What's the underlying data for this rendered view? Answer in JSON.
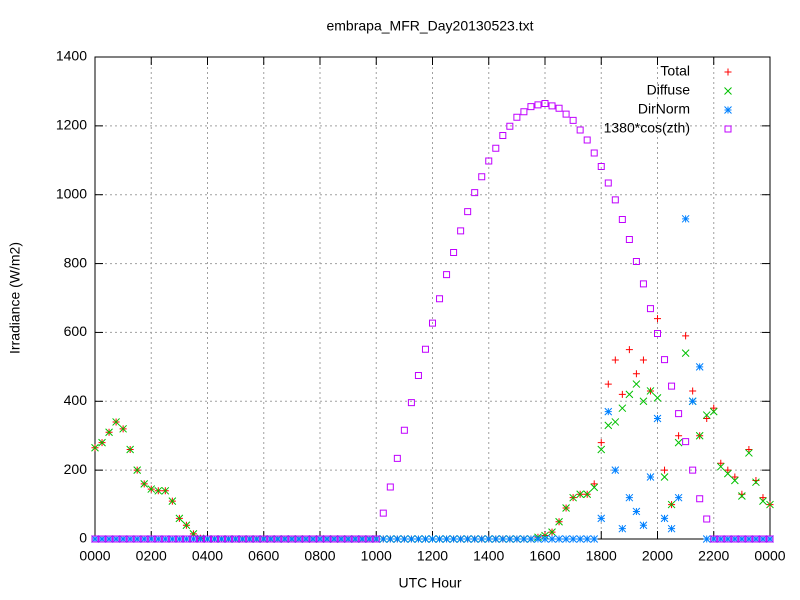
{
  "chart_data": {
    "type": "scatter",
    "title": "embrapa_MFR_Day20130523.txt",
    "x_label": "UTC Hour",
    "y_label": "Irradiance (W/m2)",
    "xlim": [
      0,
      24
    ],
    "ylim": [
      0,
      1400
    ],
    "xticks": [
      {
        "value": 0,
        "label": "0000"
      },
      {
        "value": 2,
        "label": "0200"
      },
      {
        "value": 4,
        "label": "0400"
      },
      {
        "value": 6,
        "label": "0600"
      },
      {
        "value": 8,
        "label": "0800"
      },
      {
        "value": 10,
        "label": "1000"
      },
      {
        "value": 12,
        "label": "1200"
      },
      {
        "value": 14,
        "label": "1400"
      },
      {
        "value": 16,
        "label": "1600"
      },
      {
        "value": 18,
        "label": "1800"
      },
      {
        "value": 20,
        "label": "2000"
      },
      {
        "value": 22,
        "label": "2200"
      },
      {
        "value": 24,
        "label": "0000"
      }
    ],
    "yticks": [
      0,
      200,
      400,
      600,
      800,
      1000,
      1200,
      1400
    ],
    "grid": true,
    "legend": "top-right",
    "x": [
      0,
      0.25,
      0.5,
      0.75,
      1,
      1.25,
      1.5,
      1.75,
      2,
      2.25,
      2.5,
      2.75,
      3,
      3.25,
      3.5,
      3.75,
      4,
      4.25,
      4.5,
      4.75,
      5,
      5.25,
      5.5,
      5.75,
      6,
      6.25,
      6.5,
      6.75,
      7,
      7.25,
      7.5,
      7.75,
      8,
      8.25,
      8.5,
      8.75,
      9,
      9.25,
      9.5,
      9.75,
      10,
      10.25,
      10.5,
      10.75,
      11,
      11.25,
      11.5,
      11.75,
      12,
      12.25,
      12.5,
      12.75,
      13,
      13.25,
      13.5,
      13.75,
      14,
      14.25,
      14.5,
      14.75,
      15,
      15.25,
      15.5,
      15.75,
      16,
      16.25,
      16.5,
      16.75,
      17,
      17.25,
      17.5,
      17.75,
      18,
      18.25,
      18.5,
      18.75,
      19,
      19.25,
      19.5,
      19.75,
      20,
      20.25,
      20.5,
      20.75,
      21,
      21.25,
      21.5,
      21.75,
      22,
      22.25,
      22.5,
      22.75,
      23,
      23.25,
      23.5,
      23.75,
      24
    ],
    "series": [
      {
        "name": "Total",
        "color": "#ff0000",
        "marker": "plus",
        "values": [
          265,
          280,
          310,
          340,
          320,
          260,
          200,
          160,
          145,
          140,
          140,
          110,
          60,
          40,
          15,
          2,
          0,
          0,
          0,
          0,
          0,
          0,
          0,
          0,
          0,
          0,
          0,
          0,
          0,
          0,
          0,
          0,
          0,
          0,
          0,
          0,
          0,
          0,
          0,
          0,
          0,
          0,
          0,
          0,
          0,
          0,
          0,
          0,
          0,
          0,
          0,
          0,
          0,
          0,
          0,
          0,
          0,
          0,
          0,
          0,
          0,
          0,
          0,
          5,
          10,
          20,
          50,
          90,
          120,
          130,
          130,
          160,
          280,
          450,
          520,
          420,
          550,
          480,
          520,
          430,
          640,
          200,
          100,
          300,
          590,
          430,
          300,
          350,
          380,
          220,
          200,
          180,
          130,
          260,
          170,
          120,
          100
        ]
      },
      {
        "name": "Diffuse",
        "color": "#00c000",
        "marker": "cross",
        "values": [
          265,
          280,
          310,
          340,
          320,
          260,
          200,
          160,
          145,
          140,
          140,
          110,
          60,
          40,
          15,
          2,
          0,
          0,
          0,
          0,
          0,
          0,
          0,
          0,
          0,
          0,
          0,
          0,
          0,
          0,
          0,
          0,
          0,
          0,
          0,
          0,
          0,
          0,
          0,
          0,
          0,
          0,
          0,
          0,
          0,
          0,
          0,
          0,
          0,
          0,
          0,
          0,
          0,
          0,
          0,
          0,
          0,
          0,
          0,
          0,
          0,
          0,
          0,
          5,
          10,
          20,
          50,
          90,
          120,
          130,
          130,
          150,
          260,
          330,
          340,
          380,
          420,
          450,
          400,
          430,
          410,
          180,
          100,
          280,
          540,
          400,
          300,
          360,
          370,
          210,
          190,
          170,
          125,
          250,
          165,
          110,
          100
        ]
      },
      {
        "name": "DirNorm",
        "color": "#0080ff",
        "marker": "star",
        "values": [
          0,
          0,
          0,
          0,
          0,
          0,
          0,
          0,
          0,
          0,
          0,
          0,
          0,
          0,
          0,
          0,
          0,
          0,
          0,
          0,
          0,
          0,
          0,
          0,
          0,
          0,
          0,
          0,
          0,
          0,
          0,
          0,
          0,
          0,
          0,
          0,
          0,
          0,
          0,
          0,
          0,
          0,
          0,
          0,
          0,
          0,
          0,
          0,
          0,
          0,
          0,
          0,
          0,
          0,
          0,
          0,
          0,
          0,
          0,
          0,
          0,
          0,
          0,
          0,
          0,
          0,
          0,
          0,
          0,
          0,
          0,
          0,
          60,
          370,
          200,
          30,
          120,
          80,
          40,
          180,
          350,
          60,
          30,
          120,
          930,
          400,
          500,
          0,
          0,
          0,
          0,
          0,
          0,
          0,
          0,
          0,
          0
        ]
      },
      {
        "name": "1380*cos(zth)",
        "color": "#c000ff",
        "marker": "square",
        "values": [
          0,
          0,
          0,
          0,
          0,
          0,
          0,
          0,
          0,
          0,
          0,
          0,
          0,
          0,
          0,
          0,
          0,
          0,
          0,
          0,
          0,
          0,
          0,
          0,
          0,
          0,
          0,
          0,
          0,
          0,
          0,
          0,
          0,
          0,
          0,
          0,
          0,
          0,
          0,
          0,
          0,
          75,
          151,
          234,
          316,
          396,
          475,
          551,
          627,
          698,
          768,
          832,
          895,
          951,
          1006,
          1052,
          1098,
          1135,
          1172,
          1199,
          1225,
          1241,
          1256,
          1261,
          1265,
          1258,
          1251,
          1234,
          1216,
          1188,
          1159,
          1121,
          1082,
          1034,
          985,
          928,
          870,
          806,
          741,
          669,
          597,
          521,
          444,
          364,
          283,
          200,
          117,
          58,
          0,
          0,
          0,
          0,
          0,
          0,
          0,
          0,
          0
        ]
      }
    ]
  }
}
